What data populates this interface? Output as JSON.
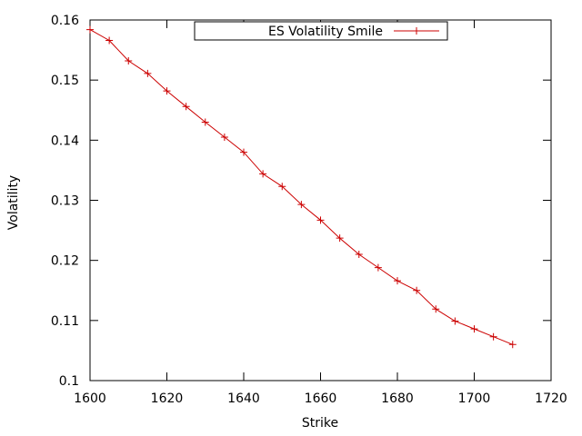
{
  "chart_data": {
    "type": "line",
    "xlabel": "Strike",
    "ylabel": "Volatility",
    "xlim": [
      1600,
      1720
    ],
    "ylim": [
      0.1,
      0.16
    ],
    "xticks": [
      "1600",
      "1620",
      "1640",
      "1660",
      "1680",
      "1700",
      "1720"
    ],
    "yticks": [
      "0.1",
      "0.11",
      "0.12",
      "0.13",
      "0.14",
      "0.15",
      "0.16"
    ],
    "legend_position": "top-center",
    "grid": false,
    "series": [
      {
        "name": "ES Volatility Smile",
        "color": "#cc0000",
        "marker": "plus",
        "x": [
          1600,
          1605,
          1610,
          1615,
          1620,
          1625,
          1630,
          1635,
          1640,
          1645,
          1650,
          1655,
          1660,
          1665,
          1670,
          1675,
          1680,
          1685,
          1690,
          1695,
          1700,
          1705,
          1710
        ],
        "values": [
          0.1584,
          0.1566,
          0.1532,
          0.1511,
          0.1482,
          0.1456,
          0.143,
          0.1405,
          0.138,
          0.1344,
          0.1323,
          0.1293,
          0.1267,
          0.1237,
          0.121,
          0.1188,
          0.1166,
          0.115,
          0.1119,
          0.1099,
          0.1086,
          0.1073,
          0.106
        ]
      }
    ]
  }
}
